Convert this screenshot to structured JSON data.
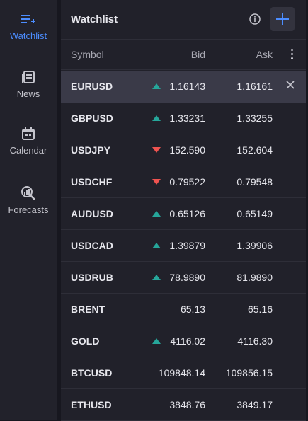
{
  "sidebar": {
    "items": [
      {
        "label": "Watchlist",
        "icon": "watchlist-add-icon",
        "active": true
      },
      {
        "label": "News",
        "icon": "news-icon",
        "active": false
      },
      {
        "label": "Calendar",
        "icon": "calendar-icon",
        "active": false
      },
      {
        "label": "Forecasts",
        "icon": "forecast-search-icon",
        "active": false
      }
    ]
  },
  "watchlist": {
    "title": "Watchlist",
    "info_icon": "info-icon",
    "add_icon": "plus-icon",
    "columns": {
      "symbol": "Symbol",
      "bid": "Bid",
      "ask": "Ask"
    },
    "rows": [
      {
        "symbol": "EURUSD",
        "bid": "1.16143",
        "ask": "1.16161",
        "trend": "up",
        "selected": true
      },
      {
        "symbol": "GBPUSD",
        "bid": "1.33231",
        "ask": "1.33255",
        "trend": "up"
      },
      {
        "symbol": "USDJPY",
        "bid": "152.590",
        "ask": "152.604",
        "trend": "down"
      },
      {
        "symbol": "USDCHF",
        "bid": "0.79522",
        "ask": "0.79548",
        "trend": "down"
      },
      {
        "symbol": "AUDUSD",
        "bid": "0.65126",
        "ask": "0.65149",
        "trend": "up"
      },
      {
        "symbol": "USDCAD",
        "bid": "1.39879",
        "ask": "1.39906",
        "trend": "up"
      },
      {
        "symbol": "USDRUB",
        "bid": "78.9890",
        "ask": "81.9890",
        "trend": "up"
      },
      {
        "symbol": "BRENT",
        "bid": "65.13",
        "ask": "65.16",
        "trend": "none"
      },
      {
        "symbol": "GOLD",
        "bid": "4116.02",
        "ask": "4116.30",
        "trend": "up"
      },
      {
        "symbol": "BTCUSD",
        "bid": "109848.14",
        "ask": "109856.15",
        "trend": "none"
      },
      {
        "symbol": "ETHUSD",
        "bid": "3848.76",
        "ask": "3849.17",
        "trend": "none"
      }
    ]
  },
  "colors": {
    "accent": "#4c8dff",
    "up": "#26a69a",
    "down": "#ef5350",
    "background": "#17171f",
    "panel": "#21212a"
  }
}
